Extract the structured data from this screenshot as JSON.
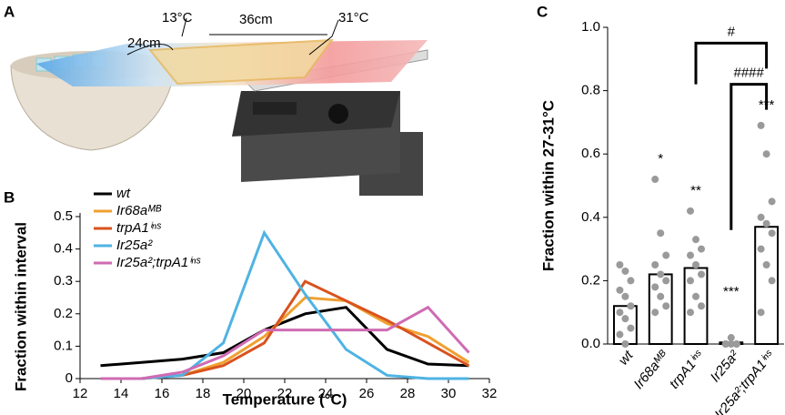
{
  "illustration": {
    "panel": "A",
    "cold": "13°C",
    "hot": "31°C",
    "length": "36cm",
    "width": "24cm"
  },
  "chart_data": [
    {
      "type": "line",
      "panel": "B",
      "xlabel": "Temperature (°C)",
      "ylabel": "Fraction within interval",
      "x": [
        13,
        15,
        17,
        19,
        21,
        23,
        25,
        27,
        29,
        31
      ],
      "xlim": [
        12,
        32
      ],
      "xticks": [
        12,
        14,
        16,
        18,
        20,
        22,
        24,
        26,
        28,
        30,
        32
      ],
      "ylim": [
        0,
        0.5
      ],
      "yticks": [
        0,
        0.1,
        0.2,
        0.3,
        0.4,
        0.5
      ],
      "series": [
        {
          "name": "wt",
          "color": "#000000",
          "values": [
            0.04,
            0.05,
            0.06,
            0.08,
            0.15,
            0.2,
            0.22,
            0.09,
            0.045,
            0.04
          ]
        },
        {
          "name": "Ir68aᴹᴮ",
          "color": "#f0a030",
          "values": [
            0,
            0,
            0.01,
            0.05,
            0.13,
            0.25,
            0.24,
            0.17,
            0.13,
            0.05
          ]
        },
        {
          "name": "trpA1ⁱⁿˢ",
          "color": "#d9531e",
          "values": [
            0,
            0,
            0.01,
            0.04,
            0.11,
            0.3,
            0.24,
            0.18,
            0.11,
            0.04
          ]
        },
        {
          "name": "Ir25a²",
          "color": "#4fb3e3",
          "values": [
            0,
            0,
            0.01,
            0.11,
            0.45,
            0.26,
            0.09,
            0.01,
            0,
            0
          ]
        },
        {
          "name": "Ir25a²;trpA1ⁱⁿˢ",
          "color": "#cf6bb3",
          "values": [
            0,
            0,
            0.02,
            0.07,
            0.15,
            0.15,
            0.15,
            0.15,
            0.22,
            0.08
          ]
        }
      ]
    },
    {
      "type": "bar",
      "panel": "C",
      "ylabel": "Fraction within 27-31°C",
      "categories": [
        "wt",
        "Ir68aᴹᴮ",
        "trpA1ⁱⁿˢ",
        "Ir25a²",
        "Ir25a²;trpA1ⁱⁿˢ"
      ],
      "values": [
        0.12,
        0.22,
        0.24,
        0.005,
        0.37
      ],
      "points": [
        [
          0.25,
          0.23,
          0.2,
          0.17,
          0.15,
          0.12,
          0.1,
          0.08,
          0.05,
          0.03,
          0
        ],
        [
          0.52,
          0.35,
          0.28,
          0.25,
          0.22,
          0.2,
          0.18,
          0.15,
          0.12,
          0.1
        ],
        [
          0.42,
          0.33,
          0.3,
          0.28,
          0.25,
          0.22,
          0.2,
          0.15,
          0.12,
          0.1
        ],
        [
          0,
          0,
          0,
          0,
          0.02,
          0
        ],
        [
          0.69,
          0.6,
          0.45,
          0.4,
          0.38,
          0.35,
          0.3,
          0.25,
          0.2,
          0.1
        ]
      ],
      "significance": [
        null,
        "*",
        "**",
        "***",
        "***"
      ],
      "comparisons": [
        "#",
        "####"
      ],
      "color": "#ffffff",
      "point_color": "#9a9a9a",
      "ylim": [
        0,
        1
      ],
      "yticks": [
        {
          "value": 0,
          "label": "0.0"
        },
        {
          "value": 0.2,
          "label": "0.2"
        },
        {
          "value": 0.4,
          "label": "0.4"
        },
        {
          "value": 0.6,
          "label": "0.6"
        },
        {
          "value": 0.8,
          "label": "0.8"
        },
        {
          "value": 1,
          "label": "1.0"
        }
      ]
    }
  ]
}
